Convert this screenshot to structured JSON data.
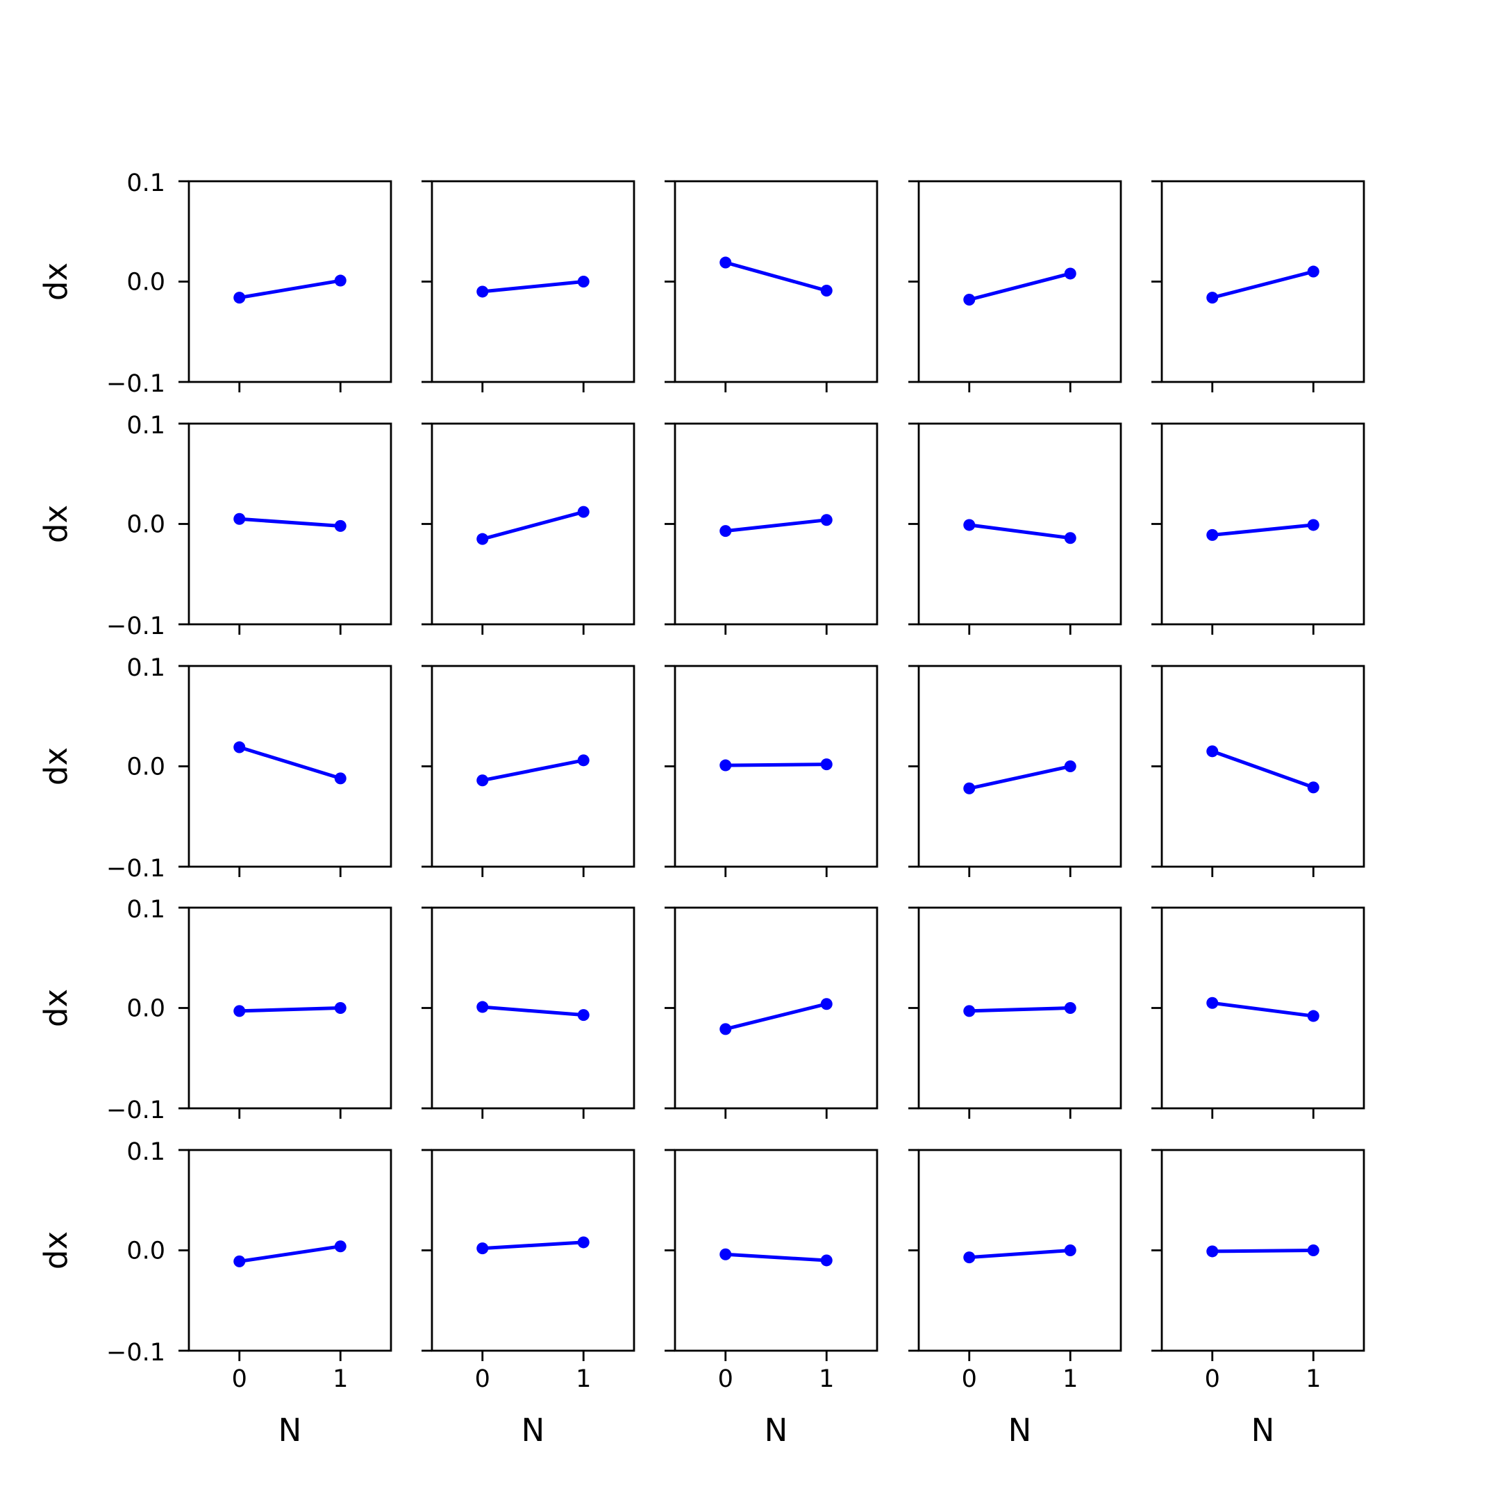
{
  "chart_data": {
    "type": "line",
    "layout": "5x5 grid of small multiples",
    "x_ticks": [
      "0",
      "1"
    ],
    "y_ticks": [
      "0.1",
      "0.0",
      "−0.1"
    ],
    "xlim": [
      -0.5,
      1.5
    ],
    "ylim": [
      -0.1,
      0.1
    ],
    "xlabel": "N",
    "ylabel": "dx",
    "grid": false,
    "line_color": "#0000ff",
    "marker": "circle",
    "panels": [
      {
        "x": [
          0,
          1
        ],
        "y": [
          -0.016,
          0.001
        ]
      },
      {
        "x": [
          0,
          1
        ],
        "y": [
          -0.01,
          0.0
        ]
      },
      {
        "x": [
          0,
          1
        ],
        "y": [
          0.019,
          -0.009
        ]
      },
      {
        "x": [
          0,
          1
        ],
        "y": [
          -0.018,
          0.008
        ]
      },
      {
        "x": [
          0,
          1
        ],
        "y": [
          -0.016,
          0.01
        ]
      },
      {
        "x": [
          0,
          1
        ],
        "y": [
          0.005,
          -0.002
        ]
      },
      {
        "x": [
          0,
          1
        ],
        "y": [
          -0.015,
          0.012
        ]
      },
      {
        "x": [
          0,
          1
        ],
        "y": [
          -0.007,
          0.004
        ]
      },
      {
        "x": [
          0,
          1
        ],
        "y": [
          -0.001,
          -0.014
        ]
      },
      {
        "x": [
          0,
          1
        ],
        "y": [
          -0.011,
          -0.001
        ]
      },
      {
        "x": [
          0,
          1
        ],
        "y": [
          0.019,
          -0.012
        ]
      },
      {
        "x": [
          0,
          1
        ],
        "y": [
          -0.014,
          0.006
        ]
      },
      {
        "x": [
          0,
          1
        ],
        "y": [
          0.001,
          0.002
        ]
      },
      {
        "x": [
          0,
          1
        ],
        "y": [
          -0.022,
          0.0
        ]
      },
      {
        "x": [
          0,
          1
        ],
        "y": [
          0.015,
          -0.021
        ]
      },
      {
        "x": [
          0,
          1
        ],
        "y": [
          -0.003,
          0.0
        ]
      },
      {
        "x": [
          0,
          1
        ],
        "y": [
          0.001,
          -0.007
        ]
      },
      {
        "x": [
          0,
          1
        ],
        "y": [
          -0.021,
          0.004
        ]
      },
      {
        "x": [
          0,
          1
        ],
        "y": [
          -0.003,
          0.0
        ]
      },
      {
        "x": [
          0,
          1
        ],
        "y": [
          0.005,
          -0.008
        ]
      },
      {
        "x": [
          0,
          1
        ],
        "y": [
          -0.011,
          0.004
        ]
      },
      {
        "x": [
          0,
          1
        ],
        "y": [
          0.002,
          0.008
        ]
      },
      {
        "x": [
          0,
          1
        ],
        "y": [
          -0.004,
          -0.01
        ]
      },
      {
        "x": [
          0,
          1
        ],
        "y": [
          -0.007,
          0.0
        ]
      },
      {
        "x": [
          0,
          1
        ],
        "y": [
          -0.001,
          0.0
        ]
      }
    ]
  }
}
